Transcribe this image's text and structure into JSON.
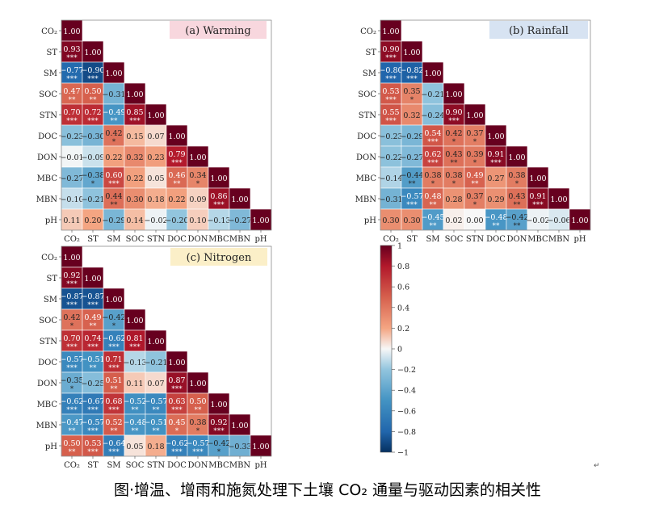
{
  "figure": {
    "caption": "图·增温、增雨和施氮处理下土壤 CO₂ 通量与驱动因素的相关性",
    "return_mark": "↵"
  },
  "colorbar": {
    "ticks": [
      "1",
      "0.8",
      "0.6",
      "0.4",
      "0.2",
      "0",
      "−0.2",
      "−0.4",
      "−0.6",
      "−0.8",
      "−1"
    ],
    "range": [
      -1,
      1
    ],
    "colors": {
      "neg": "#2166ac",
      "mid": "#f7f7f7",
      "pos": "#b2182b"
    }
  },
  "chart_data": [
    {
      "type": "heatmap",
      "panel_label": "(a)  Warming",
      "label_bg": "#f8d7de",
      "variables": [
        "CO₂",
        "ST",
        "SM",
        "SOC",
        "STN",
        "DOC",
        "DON",
        "MBC",
        "MBN",
        "pH"
      ],
      "values": [
        [
          1.0
        ],
        [
          0.93,
          1.0
        ],
        [
          -0.77,
          -0.9,
          1.0
        ],
        [
          0.47,
          0.5,
          -0.31,
          1.0
        ],
        [
          0.7,
          0.72,
          -0.49,
          0.85,
          1.0
        ],
        [
          -0.23,
          -0.3,
          0.42,
          0.15,
          0.07,
          1.0
        ],
        [
          -0.01,
          -0.09,
          0.22,
          0.32,
          0.23,
          0.79,
          1.0
        ],
        [
          -0.27,
          -0.38,
          0.6,
          0.22,
          0.05,
          0.46,
          0.34,
          1.0
        ],
        [
          -0.1,
          -0.21,
          0.44,
          0.3,
          0.18,
          0.22,
          0.09,
          0.86,
          1.0
        ],
        [
          0.11,
          0.2,
          -0.29,
          0.14,
          -0.02,
          -0.2,
          0.1,
          -0.13,
          -0.27,
          1.0
        ]
      ],
      "stars": [
        [
          ""
        ],
        [
          "***",
          ""
        ],
        [
          "***",
          "***",
          ""
        ],
        [
          "**",
          "**",
          "",
          ""
        ],
        [
          "***",
          "***",
          "**",
          "***",
          ""
        ],
        [
          "",
          "",
          "*",
          "",
          "",
          ""
        ],
        [
          "",
          "",
          "",
          "",
          "",
          "***",
          ""
        ],
        [
          "",
          "*",
          "***",
          "",
          "",
          "**",
          "*",
          ""
        ],
        [
          "",
          "",
          "**",
          "",
          "",
          "",
          "",
          "***",
          ""
        ],
        [
          "",
          "",
          "",
          "",
          "",
          "",
          "",
          "",
          "",
          ""
        ]
      ]
    },
    {
      "type": "heatmap",
      "panel_label": "(b)  Rainfall",
      "label_bg": "#d7e3f2",
      "variables": [
        "CO₂",
        "ST",
        "SM",
        "SOC",
        "STN",
        "DOC",
        "DON",
        "MBC",
        "MBN",
        "pH"
      ],
      "values": [
        [
          1.0
        ],
        [
          0.9,
          1.0
        ],
        [
          -0.8,
          -0.82,
          1.0
        ],
        [
          0.53,
          0.35,
          -0.21,
          1.0
        ],
        [
          0.55,
          0.32,
          -0.24,
          0.9,
          1.0
        ],
        [
          -0.23,
          -0.29,
          0.54,
          0.42,
          0.37,
          1.0
        ],
        [
          -0.22,
          -0.27,
          0.62,
          0.43,
          0.39,
          0.91,
          1.0
        ],
        [
          -0.14,
          -0.44,
          0.38,
          0.38,
          0.49,
          0.27,
          0.38,
          1.0
        ],
        [
          -0.31,
          -0.57,
          0.48,
          0.28,
          0.37,
          0.29,
          0.43,
          0.91,
          1.0
        ],
        [
          0.3,
          0.3,
          -0.45,
          0.02,
          0.0,
          -0.48,
          -0.42,
          -0.02,
          -0.06,
          1.0
        ]
      ],
      "stars": [
        [
          ""
        ],
        [
          "***",
          ""
        ],
        [
          "***",
          "***",
          ""
        ],
        [
          "***",
          "*",
          "",
          ""
        ],
        [
          "***",
          "",
          "",
          "***",
          ""
        ],
        [
          "",
          "",
          "***",
          "*",
          "*",
          ""
        ],
        [
          "",
          "",
          "***",
          "**",
          "*",
          "***",
          ""
        ],
        [
          "",
          "**",
          "*",
          "*",
          "**",
          "",
          "*",
          ""
        ],
        [
          "",
          "***",
          "**",
          "",
          "*",
          "",
          "**",
          "***",
          ""
        ],
        [
          "",
          "",
          "**",
          "",
          "",
          "**",
          "**",
          "",
          "",
          ""
        ]
      ]
    },
    {
      "type": "heatmap",
      "panel_label": "(c)  Nitrogen",
      "label_bg": "#fbefc8",
      "variables": [
        "CO₂",
        "ST",
        "SM",
        "SOC",
        "STN",
        "DOC",
        "DON",
        "MBC",
        "MBN",
        "pH"
      ],
      "values": [
        [
          1.0
        ],
        [
          0.92,
          1.0
        ],
        [
          -0.87,
          -0.87,
          1.0
        ],
        [
          0.42,
          0.49,
          -0.42,
          1.0
        ],
        [
          0.7,
          0.74,
          -0.62,
          0.81,
          1.0
        ],
        [
          -0.57,
          -0.51,
          0.71,
          -0.13,
          -0.21,
          1.0
        ],
        [
          -0.35,
          -0.25,
          0.51,
          0.11,
          0.07,
          0.87,
          1.0
        ],
        [
          -0.62,
          -0.67,
          0.68,
          -0.52,
          -0.57,
          0.63,
          0.5,
          1.0
        ],
        [
          -0.47,
          -0.57,
          0.52,
          -0.48,
          -0.51,
          0.45,
          0.38,
          0.92,
          1.0
        ],
        [
          0.5,
          0.53,
          -0.64,
          0.05,
          0.18,
          -0.62,
          -0.57,
          -0.42,
          -0.33,
          1.0
        ]
      ],
      "stars": [
        [
          ""
        ],
        [
          "***",
          ""
        ],
        [
          "***",
          "***",
          ""
        ],
        [
          "*",
          "**",
          "*",
          ""
        ],
        [
          "***",
          "***",
          "***",
          "***",
          ""
        ],
        [
          "***",
          "**",
          "***",
          "",
          "",
          ""
        ],
        [
          "*",
          "",
          "**",
          "",
          "",
          "***",
          ""
        ],
        [
          "***",
          "***",
          "***",
          "**",
          "**",
          "***",
          "**",
          ""
        ],
        [
          "**",
          "***",
          "**",
          "**",
          "**",
          "*",
          "*",
          "***",
          ""
        ],
        [
          "**",
          "***",
          "***",
          "",
          "",
          "***",
          "***",
          "*",
          "",
          ""
        ]
      ]
    }
  ]
}
